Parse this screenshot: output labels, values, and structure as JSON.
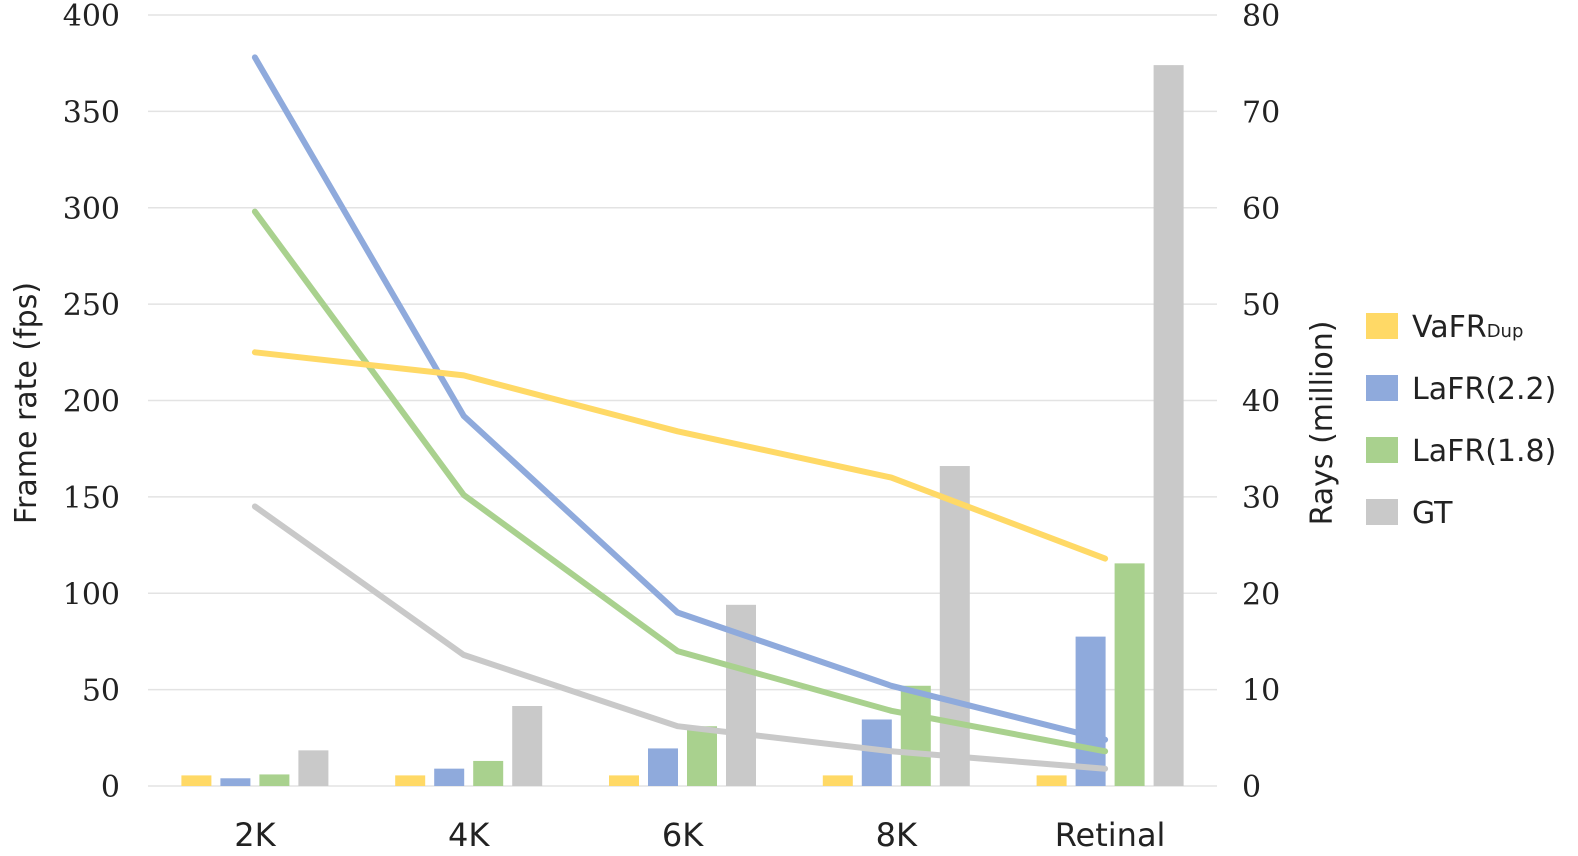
{
  "chart_data": {
    "type": "bar",
    "categories": [
      "2K",
      "4K",
      "6K",
      "8K",
      "Retinal"
    ],
    "y_left": {
      "label": "Frame rate (fps)",
      "range": [
        0,
        400
      ],
      "ticks": [
        "0",
        "50",
        "100",
        "150",
        "200",
        "250",
        "300",
        "350",
        "400"
      ]
    },
    "y_right": {
      "label": "Rays (million)",
      "range": [
        0,
        80
      ],
      "ticks": [
        "0",
        "10",
        "20",
        "30",
        "40",
        "50",
        "60",
        "70",
        "80"
      ]
    },
    "grid": true,
    "legend_position": "right",
    "bar_axis": "right",
    "line_axis": "left",
    "series": [
      {
        "name": "VaFR",
        "name_sub": "Dup",
        "color": "#FFD966",
        "bar_values": [
          1.1,
          1.1,
          1.1,
          1.1,
          1.1
        ],
        "line_values": [
          225,
          213,
          184,
          160,
          118
        ]
      },
      {
        "name": "LaFR(2.2)",
        "color": "#8FAADC",
        "bar_values": [
          0.8,
          1.8,
          3.9,
          6.9,
          15.5
        ],
        "line_values": [
          378,
          192,
          90,
          52,
          24
        ]
      },
      {
        "name": "LaFR(1.8)",
        "color": "#A9D18E",
        "bar_values": [
          1.2,
          2.6,
          6.2,
          10.4,
          23.1
        ],
        "line_values": [
          298,
          151,
          70,
          39,
          18
        ]
      },
      {
        "name": "GT",
        "color": "#C9C9C9",
        "bar_values": [
          3.7,
          8.3,
          18.8,
          33.2,
          74.8
        ],
        "line_values": [
          145,
          68,
          31,
          18,
          9
        ]
      }
    ]
  }
}
